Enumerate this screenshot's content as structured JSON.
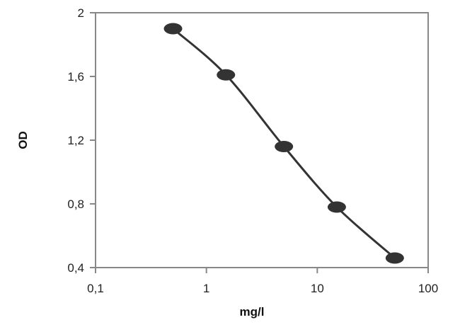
{
  "chart_data": {
    "type": "scatter",
    "title": "",
    "xlabel": "mg/l",
    "ylabel": "OD",
    "x_scale": "log",
    "xlim": [
      0.1,
      100
    ],
    "ylim": [
      0.4,
      2
    ],
    "x_ticks": [
      "0,1",
      "1",
      "10",
      "100"
    ],
    "y_ticks": [
      "0,4",
      "0,8",
      "1,2",
      "1,6",
      "2"
    ],
    "grid": false,
    "legend": "none",
    "series": [
      {
        "x": [
          0.5,
          1.5,
          5,
          15,
          50
        ],
        "y": [
          1.9,
          1.61,
          1.16,
          0.78,
          0.46
        ],
        "marker": "filled-ellipse",
        "line": "smooth",
        "color": "#333333"
      }
    ]
  }
}
